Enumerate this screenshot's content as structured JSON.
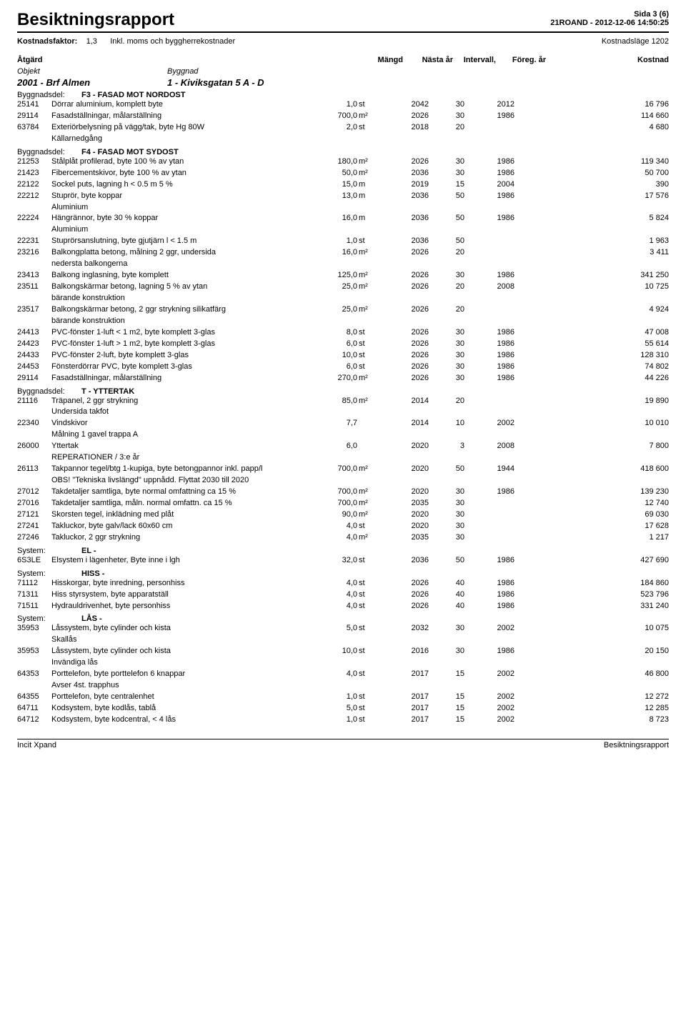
{
  "header": {
    "title": "Besiktningsrapport",
    "page_label": "Sida 3 (6)",
    "ref": "21ROAND - 2012-12-06 14:50:25",
    "factor_label": "Kostnadsfaktor:",
    "factor_value": "1,3",
    "factor_note": "Inkl. moms och byggherrekostnader",
    "cost_mode": "Kostnadsläge 1202"
  },
  "columns": {
    "atgard": "Åtgärd",
    "mangd": "Mängd",
    "nasta_ar": "Nästa år",
    "intervall": "Intervall,",
    "foreg_ar": "Föreg. år",
    "kostnad": "Kostnad",
    "objekt": "Objekt",
    "byggnad": "Byggnad"
  },
  "object_line": {
    "objekt": "2001 - Brf Almen",
    "byggnad": "1 - Kiviksgatan 5 A - D"
  },
  "sections": [
    {
      "label": "Byggnadsdel:",
      "value": "F3 - FASAD MOT NORDOST",
      "rows": [
        {
          "code": "25141",
          "desc": "Dörrar aluminium, komplett byte",
          "qty": "1,0",
          "unit": "st",
          "ar": "2042",
          "int": "30",
          "foreg": "2012",
          "kost": "16 796"
        },
        {
          "code": "29114",
          "desc": "Fasadställningar, målarställning",
          "qty": "700,0",
          "unit": "m²",
          "ar": "2026",
          "int": "30",
          "foreg": "1986",
          "kost": "114 660"
        },
        {
          "code": "63784",
          "desc": "Exteriörbelysning på vägg/tak, byte Hg 80W",
          "qty": "2,0",
          "unit": "st",
          "ar": "2018",
          "int": "20",
          "foreg": "",
          "kost": "4 680",
          "note": "Källarnedgång"
        }
      ]
    },
    {
      "label": "Byggnadsdel:",
      "value": "F4 - FASAD MOT SYDOST",
      "rows": [
        {
          "code": "21253",
          "desc": "Stålplåt profilerad, byte 100 % av ytan",
          "qty": "180,0",
          "unit": "m²",
          "ar": "2026",
          "int": "30",
          "foreg": "1986",
          "kost": "119 340"
        },
        {
          "code": "21423",
          "desc": "Fibercementskivor, byte 100 % av ytan",
          "qty": "50,0",
          "unit": "m²",
          "ar": "2036",
          "int": "30",
          "foreg": "1986",
          "kost": "50 700"
        },
        {
          "code": "22122",
          "desc": "Sockel puts, lagning h < 0.5 m 5 %",
          "qty": "15,0",
          "unit": "m",
          "ar": "2019",
          "int": "15",
          "foreg": "2004",
          "kost": "390"
        },
        {
          "code": "22212",
          "desc": "Stuprör, byte koppar",
          "qty": "13,0",
          "unit": "m",
          "ar": "2036",
          "int": "50",
          "foreg": "1986",
          "kost": "17 576",
          "note": "Aluminium"
        },
        {
          "code": "22224",
          "desc": "Hängrännor, byte 30 % koppar",
          "qty": "16,0",
          "unit": "m",
          "ar": "2036",
          "int": "50",
          "foreg": "1986",
          "kost": "5 824",
          "note": "Aluminium"
        },
        {
          "code": "22231",
          "desc": "Stuprörsanslutning, byte gjutjärn l < 1.5 m",
          "qty": "1,0",
          "unit": "st",
          "ar": "2036",
          "int": "50",
          "foreg": "",
          "kost": "1 963"
        },
        {
          "code": "23216",
          "desc": "Balkongplatta betong, målning 2 ggr, undersida",
          "qty": "16,0",
          "unit": "m²",
          "ar": "2026",
          "int": "20",
          "foreg": "",
          "kost": "3 411",
          "note": "nedersta balkongerna"
        },
        {
          "code": "23413",
          "desc": "Balkong inglasning, byte komplett",
          "qty": "125,0",
          "unit": "m²",
          "ar": "2026",
          "int": "30",
          "foreg": "1986",
          "kost": "341 250"
        },
        {
          "code": "23511",
          "desc": "Balkongskärmar betong, lagning 5 % av ytan",
          "qty": "25,0",
          "unit": "m²",
          "ar": "2026",
          "int": "20",
          "foreg": "2008",
          "kost": "10 725",
          "note": "bärande konstruktion"
        },
        {
          "code": "23517",
          "desc": "Balkongskärmar betong, 2 ggr strykning silikatfärg",
          "qty": "25,0",
          "unit": "m²",
          "ar": "2026",
          "int": "20",
          "foreg": "",
          "kost": "4 924",
          "note": "bärande konstruktion"
        },
        {
          "code": "24413",
          "desc": "PVC-fönster 1-luft < 1 m2, byte komplett 3-glas",
          "qty": "8,0",
          "unit": "st",
          "ar": "2026",
          "int": "30",
          "foreg": "1986",
          "kost": "47 008"
        },
        {
          "code": "24423",
          "desc": "PVC-fönster 1-luft > 1 m2, byte komplett 3-glas",
          "qty": "6,0",
          "unit": "st",
          "ar": "2026",
          "int": "30",
          "foreg": "1986",
          "kost": "55 614"
        },
        {
          "code": "24433",
          "desc": "PVC-fönster 2-luft, byte komplett 3-glas",
          "qty": "10,0",
          "unit": "st",
          "ar": "2026",
          "int": "30",
          "foreg": "1986",
          "kost": "128 310"
        },
        {
          "code": "24453",
          "desc": "Fönsterdörrar PVC, byte komplett 3-glas",
          "qty": "6,0",
          "unit": "st",
          "ar": "2026",
          "int": "30",
          "foreg": "1986",
          "kost": "74 802"
        },
        {
          "code": "29114",
          "desc": "Fasadställningar, målarställning",
          "qty": "270,0",
          "unit": "m²",
          "ar": "2026",
          "int": "30",
          "foreg": "1986",
          "kost": "44 226"
        }
      ]
    },
    {
      "label": "Byggnadsdel:",
      "value": "T - YTTERTAK",
      "rows": [
        {
          "code": "21116",
          "desc": "Träpanel, 2 ggr strykning",
          "qty": "85,0",
          "unit": "m²",
          "ar": "2014",
          "int": "20",
          "foreg": "",
          "kost": "19 890",
          "note": "Undersida takfot"
        },
        {
          "code": "22340",
          "desc": "Vindskivor",
          "qty": "7,7",
          "unit": "",
          "ar": "2014",
          "int": "10",
          "foreg": "2002",
          "kost": "10 010",
          "note": "Målning 1 gavel trappa A"
        },
        {
          "code": "26000",
          "desc": "Yttertak",
          "qty": "6,0",
          "unit": "",
          "ar": "2020",
          "int": "3",
          "foreg": "2008",
          "kost": "7 800",
          "note": "REPERATIONER / 3:e år"
        },
        {
          "code": "26113",
          "desc": "Takpannor tegel/btg 1-kupiga, byte betongpannor inkl. papp/l",
          "qty": "700,0",
          "unit": "m²",
          "ar": "2020",
          "int": "50",
          "foreg": "1944",
          "kost": "418 600",
          "note": "OBS! \"Tekniska livslängd\" uppnådd. Flyttat 2030 till 2020"
        },
        {
          "code": "27012",
          "desc": "Takdetaljer samtliga, byte normal omfattning ca 15 %",
          "qty": "700,0",
          "unit": "m²",
          "ar": "2020",
          "int": "30",
          "foreg": "1986",
          "kost": "139 230"
        },
        {
          "code": "27016",
          "desc": "Takdetaljer samtliga, måln. normal omfattn. ca 15 %",
          "qty": "700,0",
          "unit": "m²",
          "ar": "2035",
          "int": "30",
          "foreg": "",
          "kost": "12 740"
        },
        {
          "code": "27121",
          "desc": "Skorsten tegel, inklädning med plåt",
          "qty": "90,0",
          "unit": "m²",
          "ar": "2020",
          "int": "30",
          "foreg": "",
          "kost": "69 030"
        },
        {
          "code": "27241",
          "desc": "Takluckor, byte galv/lack 60x60 cm",
          "qty": "4,0",
          "unit": "st",
          "ar": "2020",
          "int": "30",
          "foreg": "",
          "kost": "17 628"
        },
        {
          "code": "27246",
          "desc": "Takluckor, 2 ggr strykning",
          "qty": "4,0",
          "unit": "m²",
          "ar": "2035",
          "int": "30",
          "foreg": "",
          "kost": "1 217"
        }
      ]
    },
    {
      "label": "System:",
      "value": "EL -",
      "rows": [
        {
          "code": "6S3LE",
          "desc": "Elsystem i lägenheter, Byte inne i lgh",
          "qty": "32,0",
          "unit": "st",
          "ar": "2036",
          "int": "50",
          "foreg": "1986",
          "kost": "427 690"
        }
      ]
    },
    {
      "label": "System:",
      "value": "HISS -",
      "rows": [
        {
          "code": "71112",
          "desc": "Hisskorgar, byte inredning, personhiss",
          "qty": "4,0",
          "unit": "st",
          "ar": "2026",
          "int": "40",
          "foreg": "1986",
          "kost": "184 860"
        },
        {
          "code": "71311",
          "desc": "Hiss styrsystem, byte apparatställ",
          "qty": "4,0",
          "unit": "st",
          "ar": "2026",
          "int": "40",
          "foreg": "1986",
          "kost": "523 796"
        },
        {
          "code": "71511",
          "desc": "Hydrauldrivenhet, byte personhiss",
          "qty": "4,0",
          "unit": "st",
          "ar": "2026",
          "int": "40",
          "foreg": "1986",
          "kost": "331 240"
        }
      ]
    },
    {
      "label": "System:",
      "value": "LÅS -",
      "rows": [
        {
          "code": "35953",
          "desc": "Låssystem, byte cylinder och kista",
          "qty": "5,0",
          "unit": "st",
          "ar": "2032",
          "int": "30",
          "foreg": "2002",
          "kost": "10 075",
          "note": "Skallås"
        },
        {
          "code": "35953",
          "desc": "Låssystem, byte cylinder och kista",
          "qty": "10,0",
          "unit": "st",
          "ar": "2016",
          "int": "30",
          "foreg": "1986",
          "kost": "20 150",
          "note": "Invändiga lås"
        },
        {
          "code": "64353",
          "desc": "Porttelefon, byte porttelefon 6 knappar",
          "qty": "4,0",
          "unit": "st",
          "ar": "2017",
          "int": "15",
          "foreg": "2002",
          "kost": "46 800",
          "note": "Avser 4st. trapphus"
        },
        {
          "code": "64355",
          "desc": "Porttelefon, byte centralenhet",
          "qty": "1,0",
          "unit": "st",
          "ar": "2017",
          "int": "15",
          "foreg": "2002",
          "kost": "12 272"
        },
        {
          "code": "64711",
          "desc": "Kodsystem, byte kodlås, tablå",
          "qty": "5,0",
          "unit": "st",
          "ar": "2017",
          "int": "15",
          "foreg": "2002",
          "kost": "12 285"
        },
        {
          "code": "64712",
          "desc": "Kodsystem, byte kodcentral, < 4 lås",
          "qty": "1,0",
          "unit": "st",
          "ar": "2017",
          "int": "15",
          "foreg": "2002",
          "kost": "8 723"
        }
      ]
    }
  ],
  "footer": {
    "left": "Incit Xpand",
    "right": "Besiktningsrapport"
  }
}
